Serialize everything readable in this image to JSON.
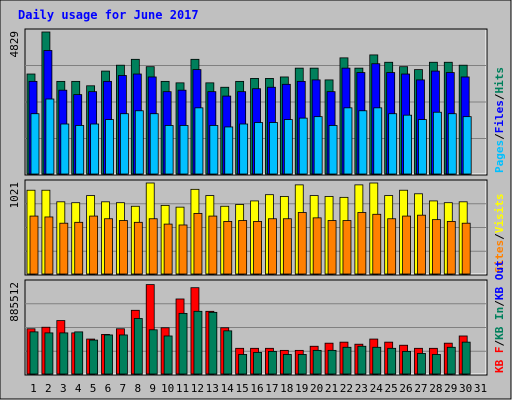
{
  "title": "Daily usage for June 2017",
  "colors": {
    "outer": "#c0c0c0",
    "plot": "#c0c0c0",
    "hits": "#00805c",
    "files": "#0000ff",
    "pages": "#00c0ff",
    "visits": "#ffff00",
    "sites": "#ff8000",
    "kb_out": "#0000ff",
    "kb_in": "#00805c",
    "kb_f": "#ff0000",
    "weekday_label": "#000000",
    "weekend_label": "#00805c"
  },
  "chart_data": [
    {
      "type": "bar",
      "panel": "hits-files-pages",
      "ymax_label": "4829",
      "legend": [
        {
          "text": "Pages",
          "color_key": "pages"
        },
        {
          "text": "/",
          "color_key": "sep"
        },
        {
          "text": "Files",
          "color_key": "files"
        },
        {
          "text": "/",
          "color_key": "sep"
        },
        {
          "text": "Hits",
          "color_key": "hits"
        }
      ],
      "categories": [
        "1",
        "2",
        "3",
        "4",
        "5",
        "6",
        "7",
        "8",
        "9",
        "10",
        "11",
        "12",
        "13",
        "14",
        "15",
        "16",
        "17",
        "18",
        "19",
        "20",
        "21",
        "22",
        "23",
        "24",
        "25",
        "26",
        "27",
        "28",
        "29",
        "30",
        "31"
      ],
      "ylim": [
        0,
        4829
      ],
      "series": [
        {
          "name": "Hits",
          "key": "hits",
          "values": [
            3400,
            4829,
            3150,
            3150,
            3000,
            3500,
            3700,
            3900,
            3650,
            3150,
            3100,
            3900,
            3100,
            2950,
            3150,
            3250,
            3250,
            3300,
            3600,
            3600,
            3200,
            3950,
            3600,
            4050,
            3800,
            3650,
            3550,
            3800,
            3800,
            3700,
            0
          ]
        },
        {
          "name": "Files",
          "key": "files",
          "values": [
            3150,
            4200,
            2850,
            2700,
            2800,
            3150,
            3350,
            3400,
            3300,
            2800,
            2850,
            3550,
            2800,
            2650,
            2800,
            2900,
            2950,
            3050,
            3150,
            3200,
            2800,
            3600,
            3450,
            3750,
            3450,
            3400,
            3200,
            3500,
            3450,
            3300,
            0
          ]
        },
        {
          "name": "Pages",
          "key": "pages",
          "values": [
            2050,
            2550,
            1700,
            1650,
            1700,
            1850,
            2050,
            2150,
            2050,
            1650,
            1650,
            2250,
            1650,
            1600,
            1700,
            1750,
            1750,
            1850,
            1900,
            1950,
            1650,
            2250,
            2150,
            2250,
            2050,
            2000,
            1850,
            2100,
            2050,
            1950,
            0
          ]
        }
      ]
    },
    {
      "type": "bar",
      "panel": "visits-sites",
      "ymax_label": "1021",
      "legend": [
        {
          "text": "Sites",
          "color_key": "sites"
        },
        {
          "text": "/",
          "color_key": "sep"
        },
        {
          "text": "Visits",
          "color_key": "visits"
        }
      ],
      "categories": [
        "1",
        "2",
        "3",
        "4",
        "5",
        "6",
        "7",
        "8",
        "9",
        "10",
        "11",
        "12",
        "13",
        "14",
        "15",
        "16",
        "17",
        "18",
        "19",
        "20",
        "21",
        "22",
        "23",
        "24",
        "25",
        "26",
        "27",
        "28",
        "29",
        "30",
        "31"
      ],
      "ylim": [
        0,
        1021
      ],
      "series": [
        {
          "name": "Visits",
          "key": "visits",
          "values": [
            940,
            940,
            810,
            800,
            880,
            810,
            800,
            760,
            1021,
            770,
            750,
            950,
            880,
            760,
            780,
            820,
            890,
            870,
            1000,
            880,
            870,
            860,
            1000,
            1021,
            880,
            940,
            900,
            820,
            800,
            810,
            0
          ]
        },
        {
          "name": "Sites",
          "key": "sites",
          "values": [
            650,
            640,
            570,
            580,
            650,
            620,
            600,
            580,
            620,
            560,
            550,
            680,
            650,
            590,
            600,
            590,
            620,
            620,
            690,
            630,
            600,
            600,
            690,
            670,
            620,
            650,
            660,
            610,
            590,
            570,
            0
          ]
        }
      ]
    },
    {
      "type": "bar",
      "panel": "kbf-kbin-kbout",
      "ymax_label": "885512",
      "legend": [
        {
          "text": "KB F",
          "color_key": "kb_f"
        },
        {
          "text": "/",
          "color_key": "sep"
        },
        {
          "text": "KB In",
          "color_key": "kb_in"
        },
        {
          "text": "/",
          "color_key": "sep"
        },
        {
          "text": "KB Out",
          "color_key": "kb_out"
        }
      ],
      "categories": [
        "1",
        "2",
        "3",
        "4",
        "5",
        "6",
        "7",
        "8",
        "9",
        "10",
        "11",
        "12",
        "13",
        "14",
        "15",
        "16",
        "17",
        "18",
        "19",
        "20",
        "21",
        "22",
        "23",
        "24",
        "25",
        "26",
        "27",
        "28",
        "29",
        "30",
        "31"
      ],
      "ylim": [
        0,
        885512
      ],
      "series": [
        {
          "name": "KB F",
          "key": "kb_f",
          "values": [
            440000,
            455000,
            520000,
            400000,
            340000,
            385000,
            440000,
            620000,
            870000,
            450000,
            730000,
            840000,
            610000,
            450000,
            250000,
            250000,
            250000,
            230000,
            230000,
            270000,
            300000,
            310000,
            290000,
            340000,
            310000,
            280000,
            250000,
            250000,
            300000,
            370000,
            0
          ]
        },
        {
          "name": "KB In",
          "key": "kb_in",
          "values": [
            410000,
            400000,
            400000,
            410000,
            330000,
            380000,
            380000,
            540000,
            430000,
            370000,
            590000,
            610000,
            600000,
            420000,
            190000,
            210000,
            220000,
            190000,
            190000,
            230000,
            230000,
            260000,
            270000,
            260000,
            250000,
            220000,
            200000,
            190000,
            260000,
            310000,
            0
          ]
        }
      ]
    }
  ]
}
